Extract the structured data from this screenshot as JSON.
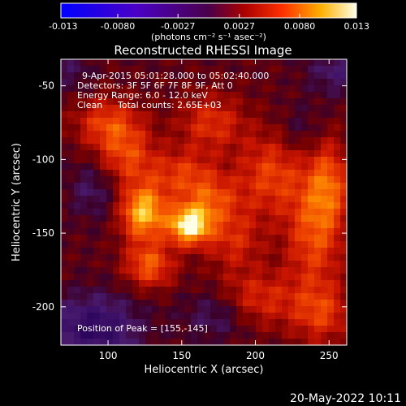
{
  "chart_data": {
    "type": "heatmap",
    "title": "Reconstructed RHESSI Image",
    "xlabel": "Heliocentric X (arcsec)",
    "ylabel": "Heliocentric Y (arcsec)",
    "xlim": [
      68,
      262
    ],
    "ylim": [
      -226,
      -32
    ],
    "xticks": [
      100,
      150,
      200,
      250
    ],
    "yticks": [
      -50,
      -100,
      -150,
      -200
    ],
    "colorbar": {
      "range": [
        -0.013,
        0.013
      ],
      "tick_labels": [
        "-0.013",
        "-0.0080",
        "-0.0027",
        "0.0027",
        "0.0080",
        "0.013"
      ],
      "tick_values": [
        -0.013,
        -0.008,
        -0.0027,
        0.0027,
        0.008,
        0.013
      ],
      "units": "(photons cm⁻² s⁻¹ asec⁻²)"
    },
    "annotations": {
      "time": "9-Apr-2015 05:01:28.000 to 05:02:40.000",
      "detectors": "Detectors: 3F 5F 6F 7F 8F 9F, Att 0",
      "energy": "Energy Range: 6.0 - 12.0 keV",
      "clean": "Clean",
      "counts": "Total counts: 2.65E+03",
      "peak": "Position of Peak = [155,-145]"
    },
    "peak": [
      155,
      -145
    ],
    "blobs": [
      {
        "x": 155,
        "y": -145,
        "amp": 1.0,
        "sx": 10,
        "sy": 9
      },
      {
        "x": 124,
        "y": -136,
        "amp": 0.85,
        "sx": 11,
        "sy": 13
      },
      {
        "x": 128,
        "y": -172,
        "amp": 0.55,
        "sx": 12,
        "sy": 11
      },
      {
        "x": 170,
        "y": -128,
        "amp": 0.45,
        "sx": 14,
        "sy": 12
      },
      {
        "x": 150,
        "y": -110,
        "amp": 0.4,
        "sx": 16,
        "sy": 12
      },
      {
        "x": 112,
        "y": -98,
        "amp": 0.45,
        "sx": 14,
        "sy": 14
      },
      {
        "x": 100,
        "y": -75,
        "amp": 0.45,
        "sx": 16,
        "sy": 12
      },
      {
        "x": 170,
        "y": -75,
        "amp": 0.4,
        "sx": 16,
        "sy": 14
      },
      {
        "x": 210,
        "y": -110,
        "amp": 0.45,
        "sx": 16,
        "sy": 20
      },
      {
        "x": 240,
        "y": -150,
        "amp": 0.5,
        "sx": 14,
        "sy": 28
      },
      {
        "x": 250,
        "y": -115,
        "amp": 0.45,
        "sx": 10,
        "sy": 20
      },
      {
        "x": 200,
        "y": -195,
        "amp": 0.4,
        "sx": 20,
        "sy": 14
      },
      {
        "x": 245,
        "y": -205,
        "amp": 0.4,
        "sx": 14,
        "sy": 14
      },
      {
        "x": 185,
        "y": -155,
        "amp": 0.35,
        "sx": 14,
        "sy": 14
      }
    ],
    "cold_spots": [
      {
        "x": 90,
        "y": -215,
        "amp": 0.9,
        "sx": 22,
        "sy": 16
      },
      {
        "x": 175,
        "y": -205,
        "amp": 0.55,
        "sx": 16,
        "sy": 12
      },
      {
        "x": 90,
        "y": -120,
        "amp": 0.45,
        "sx": 12,
        "sy": 14
      },
      {
        "x": 255,
        "y": -40,
        "amp": 0.5,
        "sx": 14,
        "sy": 12
      },
      {
        "x": 75,
        "y": -40,
        "amp": 0.35,
        "sx": 10,
        "sy": 10
      },
      {
        "x": 230,
        "y": -80,
        "amp": 0.3,
        "sx": 10,
        "sy": 12
      }
    ]
  },
  "footer": {
    "date": "20-May-2022 10:11"
  }
}
